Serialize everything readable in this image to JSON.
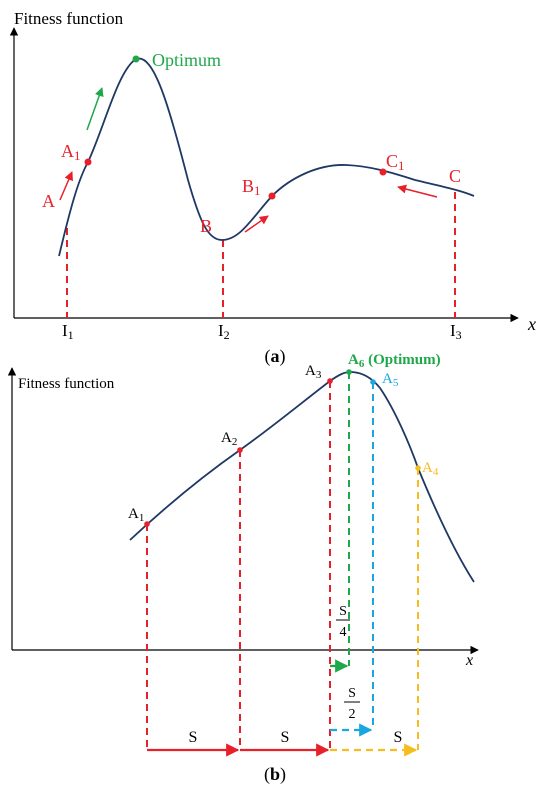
{
  "panel_a": {
    "y_label": "Fitness function",
    "x_label": "x",
    "optimum_label": "Optimum",
    "points": {
      "A": "A",
      "A1_base": "A",
      "A1_sub": "1",
      "B": "B",
      "B1_base": "B",
      "B1_sub": "1",
      "C": "C",
      "C1_base": "C",
      "C1_sub": "1"
    },
    "ticks": [
      {
        "base": "I",
        "sub": "1"
      },
      {
        "base": "I",
        "sub": "2"
      },
      {
        "base": "I",
        "sub": "3"
      }
    ],
    "caption": {
      "open": "(",
      "letter": "a",
      "close": ")"
    }
  },
  "panel_b": {
    "y_label": "Fitness function",
    "x_label": "x",
    "points": {
      "A1_base": "A",
      "A1_sub": "1",
      "A2_base": "A",
      "A2_sub": "2",
      "A3_base": "A",
      "A3_sub": "3",
      "A4_base": "A",
      "A4_sub": "4",
      "A5_base": "A",
      "A5_sub": "5",
      "A6_base": "A",
      "A6_sub": "6",
      "A6_suffix": " (Optimum)"
    },
    "steps": {
      "s": "S",
      "s4_num": "S",
      "s4_den": "4",
      "s2_num": "S",
      "s2_den": "2"
    },
    "caption": {
      "open": "(",
      "letter": "b",
      "close": ")"
    }
  },
  "colors": {
    "curve": "#1f3864",
    "red": "#e8202a",
    "green": "#1fa84a",
    "blue": "#1aa7e0",
    "yellow": "#f5bd1f"
  }
}
